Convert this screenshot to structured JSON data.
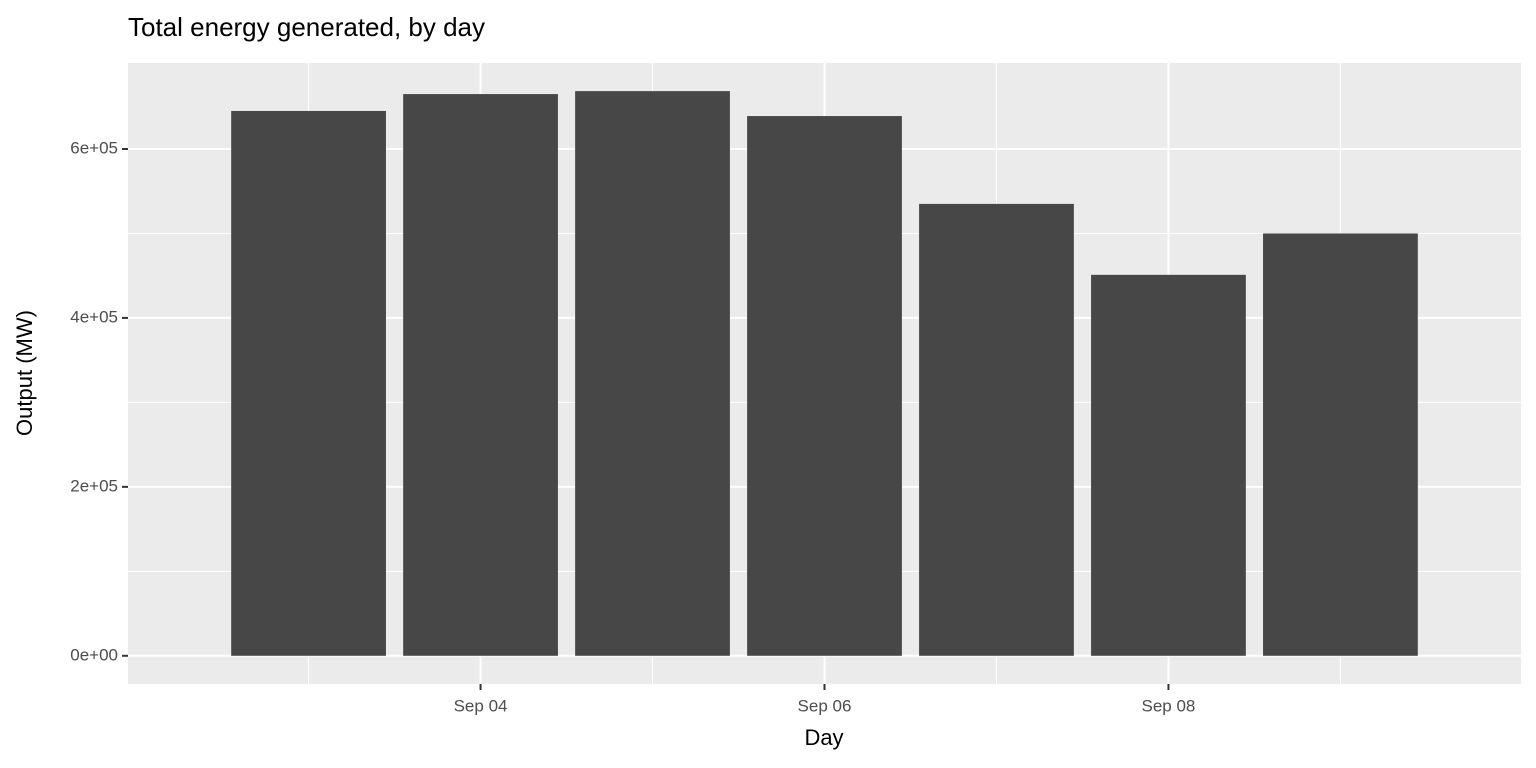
{
  "chart_data": {
    "type": "bar",
    "title": "Total energy generated, by day",
    "x_label": "Day",
    "y_label": "Output (MW)",
    "categories": [
      null,
      "Sep 04",
      null,
      "Sep 06",
      null,
      "Sep 08",
      null
    ],
    "values": [
      645000,
      665000,
      668500,
      639000,
      535000,
      451000,
      500000
    ],
    "color": "#474747",
    "ylim": [
      -33400,
      701800
    ],
    "yticks": [
      {
        "value": 0,
        "label": "0e+00"
      },
      {
        "value": 200000,
        "label": "2e+05"
      },
      {
        "value": 400000,
        "label": "4e+05"
      },
      {
        "value": 600000,
        "label": "6e+05"
      }
    ],
    "grid": true
  }
}
